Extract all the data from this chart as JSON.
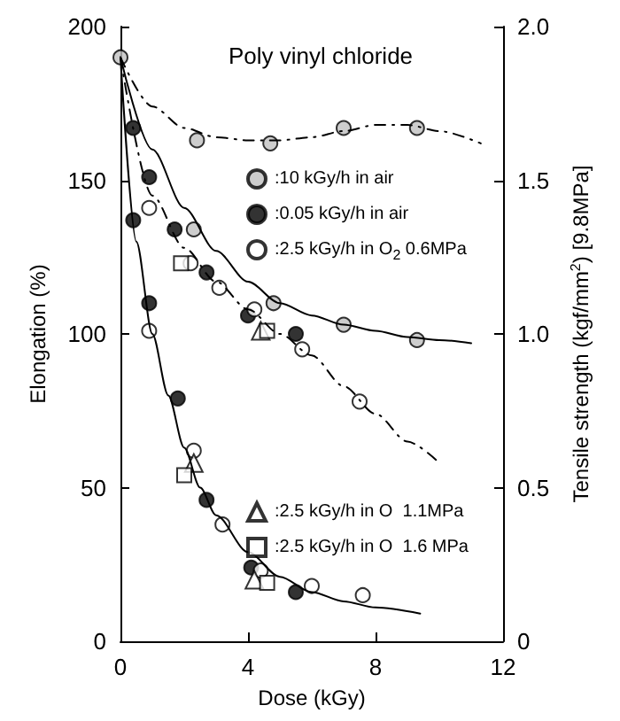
{
  "chart_data": {
    "type": "scatter",
    "title": "Poly vinyl chloride",
    "xlabel": "Dose (kGy)",
    "ylabel": "Elongation (%)",
    "y2label": "Tensile strength (kgf/mm$^{2}$) [9.8MPa]",
    "xlim": [
      0,
      12
    ],
    "xticks": [
      0,
      4,
      8,
      12
    ],
    "ylim": [
      0,
      200
    ],
    "yticks": [
      0,
      50,
      100,
      150,
      200
    ],
    "y2lim": [
      0,
      2
    ],
    "y2ticks": [
      0,
      {
        "value": 0.5,
        "label": "0.5"
      },
      {
        "value": 1,
        "label": "1.0"
      },
      {
        "value": 1.5,
        "label": "1.5"
      },
      {
        "value": 2,
        "label": "2.0"
      }
    ],
    "grid": false,
    "legend": "right",
    "series": [
      {
        "name": ":10 kGy/h in air",
        "color": "#c0c0c0",
        "marker": "circle",
        "x": [
          0,
          2.3,
          4.8,
          7.0,
          9.3
        ],
        "values": [
          190,
          134,
          110,
          103,
          98
        ]
      },
      {
        "name": ":0.05 kGy/h in air",
        "color": "#000000",
        "marker": "circle",
        "x": [
          0.4,
          0.9,
          1.8,
          2.7,
          4.1,
          5.5
        ],
        "values": [
          137,
          110,
          79,
          46,
          24,
          16
        ]
      },
      {
        "name": ":2.5 kGy/h in O$_{2}$ 0.6MPa",
        "color": "#ffffff",
        "marker": "circle",
        "x": [
          0.9,
          2.3,
          3.2,
          4.4,
          6.0,
          7.6
        ],
        "values": [
          101,
          62,
          38,
          23,
          18,
          15
        ]
      },
      {
        "name": ":2.5 kGy/h in O  1.1MPa",
        "color": "#ffffff",
        "marker": "triangle",
        "x": [
          2.3,
          4.2
        ],
        "values": [
          58,
          20
        ]
      },
      {
        "name": ":2.5 kGy/h in O  1.6 MPa",
        "color": "#ffffff",
        "marker": "square",
        "x": [
          2.0,
          4.6
        ],
        "values": [
          54,
          19
        ]
      },
      {
        "color": "#c0c0c0",
        "marker": "circle",
        "axis": "y2",
        "x": [
          2.4,
          4.7,
          7.0,
          9.3
        ],
        "values": [
          1.63,
          1.62,
          1.67,
          1.67
        ]
      },
      {
        "color": "#000000",
        "marker": "circle",
        "axis": "y2",
        "x": [
          0.4,
          0.9,
          1.7,
          2.7,
          4.0,
          5.5
        ],
        "values": [
          1.67,
          1.51,
          1.34,
          1.2,
          1.06,
          1.0
        ]
      },
      {
        "color": "#ffffff",
        "marker": "circle",
        "axis": "y2",
        "x": [
          0.9,
          2.2,
          3.1,
          4.2,
          5.7,
          7.5
        ],
        "values": [
          1.41,
          1.23,
          1.15,
          1.08,
          0.95,
          0.78
        ]
      },
      {
        "color": "#ffffff",
        "marker": "triangle",
        "axis": "y2",
        "x": [
          4.4
        ],
        "values": [
          1.01
        ]
      },
      {
        "color": "#ffffff",
        "marker": "square",
        "axis": "y2",
        "x": [
          1.9,
          4.6
        ],
        "values": [
          1.23,
          1.01
        ]
      },
      {
        "type": "line",
        "color": "#000000",
        "marker": "none",
        "line_style": "solid",
        "x": [
          0,
          1,
          2,
          3,
          4,
          5,
          6,
          7,
          8,
          9,
          10,
          11
        ],
        "values": [
          190,
          160,
          141,
          127,
          117,
          110,
          106,
          103,
          101,
          99,
          98,
          97
        ]
      },
      {
        "type": "line",
        "color": "#000000",
        "marker": "none",
        "line_style": "dashed",
        "axis": "y2",
        "x": [
          0,
          1,
          2,
          3,
          4,
          5,
          6,
          7,
          8,
          9,
          10,
          11.3
        ],
        "values": [
          1.9,
          1.74,
          1.67,
          1.64,
          1.63,
          1.63,
          1.64,
          1.66,
          1.68,
          1.68,
          1.66,
          1.62
        ]
      },
      {
        "type": "line",
        "color": "#000000",
        "marker": "none",
        "line_style": "solid",
        "x": [
          0,
          0.5,
          1,
          1.5,
          2,
          2.5,
          3,
          4,
          5,
          6,
          7,
          8,
          9.4
        ],
        "values": [
          190,
          130,
          100,
          80,
          63,
          50,
          41,
          29,
          21,
          16,
          13,
          11,
          9
        ]
      },
      {
        "type": "line",
        "color": "#000000",
        "marker": "none",
        "line_style": "dashed",
        "axis": "y2",
        "x": [
          0,
          1,
          2,
          3,
          4,
          5,
          6,
          7,
          8,
          9,
          9.9
        ],
        "values": [
          1.9,
          1.45,
          1.28,
          1.17,
          1.08,
          1.0,
          0.93,
          0.83,
          0.74,
          0.65,
          0.59
        ]
      }
    ]
  }
}
